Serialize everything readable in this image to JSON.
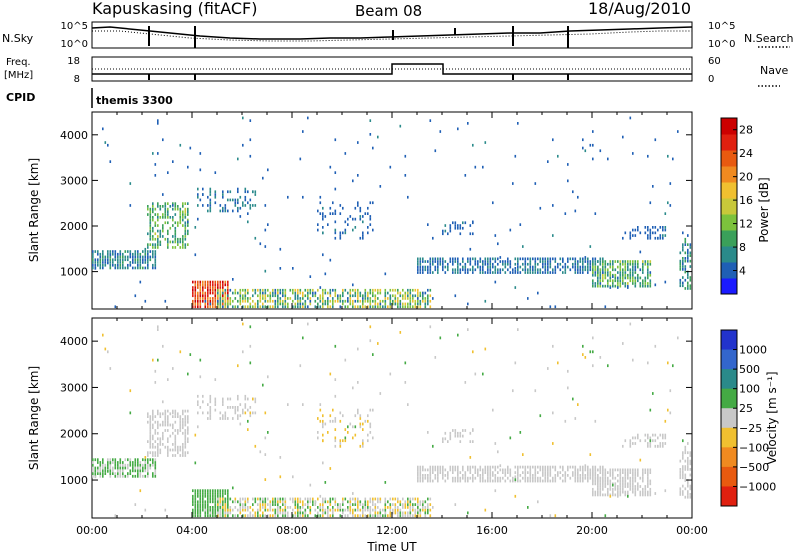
{
  "header": {
    "station": "Kapuskasing (fitACF)",
    "beam": "Beam 08",
    "date": "18/Aug/2010"
  },
  "top_panels": {
    "nsky_label": "N.Sky",
    "nsearch_label": "N.Search",
    "freq_label": "Freq.",
    "freq_unit": "[MHz]",
    "nave_label": "Nave",
    "cpid_label": "CPID",
    "cpid_value": "themis 3300",
    "noise_ticks": [
      "10^5",
      "10^0"
    ],
    "freq_ticks": [
      "18",
      "8"
    ],
    "nave_ticks": [
      "60",
      "0"
    ]
  },
  "chart_data": [
    {
      "type": "heatmap",
      "panel": "power",
      "xlabel": "",
      "ylabel": "Slant Range [km]",
      "xlim": [
        0,
        24
      ],
      "ylim": [
        180,
        4500
      ],
      "x_tick_labels": [
        "00:00",
        "04:00",
        "08:00",
        "12:00",
        "16:00",
        "20:00",
        "00:00"
      ],
      "y_ticks": [
        1000,
        2000,
        3000,
        4000
      ],
      "colorbar": {
        "label": "Power [dB]",
        "ticks": [
          4,
          8,
          12,
          16,
          20,
          24,
          28
        ],
        "range": [
          0,
          30
        ],
        "colors": [
          "#1a1aff",
          "#1f5fb5",
          "#2a8a8a",
          "#3aa05a",
          "#7cc23c",
          "#c8c83a",
          "#f0c030",
          "#f08a20",
          "#e85a10",
          "#e02010",
          "#cc0000"
        ]
      }
    },
    {
      "type": "heatmap",
      "panel": "velocity",
      "xlabel": "Time UT",
      "ylabel": "Slant Range [km]",
      "xlim": [
        0,
        24
      ],
      "ylim": [
        180,
        4500
      ],
      "x_tick_labels": [
        "00:00",
        "04:00",
        "08:00",
        "12:00",
        "16:00",
        "20:00",
        "00:00"
      ],
      "y_ticks": [
        1000,
        2000,
        3000,
        4000
      ],
      "colorbar": {
        "label": "Velocity [m s⁻¹]",
        "tick_labels": [
          "1000",
          "500",
          "100",
          "25",
          "−25",
          "−100",
          "−500",
          "−1000"
        ],
        "colors": [
          "#2233cc",
          "#3366cc",
          "#2a8a8a",
          "#44aa44",
          "#c8c8c8",
          "#f0c030",
          "#f08a20",
          "#e85a10",
          "#e02010"
        ]
      }
    }
  ]
}
